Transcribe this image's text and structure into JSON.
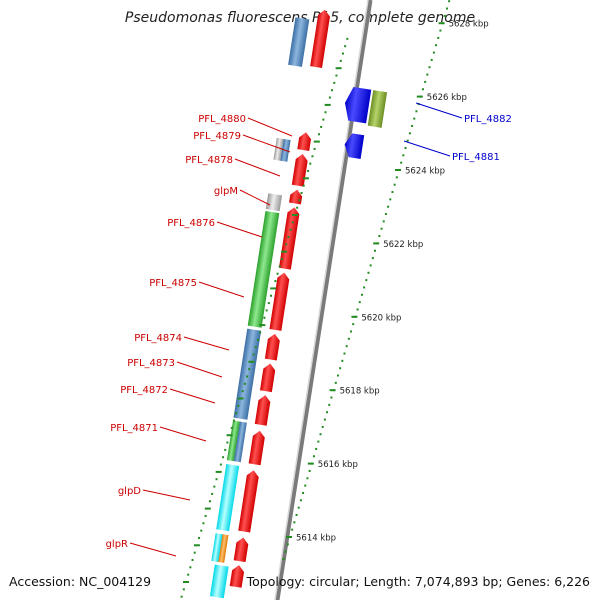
{
  "title": "Pseudomonas fluorescens Pf-5, complete genome",
  "footer": {
    "accession": "Accession: NC_004129",
    "summary": "Topology: circular; Length: 7,074,893 bp; Genes: 6,226"
  },
  "colors": {
    "forward_cds": "#ff0000",
    "reverse_strand_cds": "#0000ff",
    "left_label": "#cc0000",
    "right_label": "#0000cc",
    "ruler_tick": "#228b22",
    "backbone": "#888888"
  },
  "ruler_labels": [
    {
      "pos": 5614,
      "label": "5614 kbp"
    },
    {
      "pos": 5616,
      "label": "5616 kbp"
    },
    {
      "pos": 5618,
      "label": "5618 kbp"
    },
    {
      "pos": 5620,
      "label": "5620 kbp"
    },
    {
      "pos": 5622,
      "label": "5622 kbp"
    },
    {
      "pos": 5624,
      "label": "5624 kbp"
    },
    {
      "pos": 5626,
      "label": "5626 kbp"
    },
    {
      "pos": 5628,
      "label": "5628 kbp"
    }
  ],
  "left_gene_labels": [
    {
      "name": "PFL_4880",
      "pos": 5624.9
    },
    {
      "name": "PFL_4879",
      "pos": 5624.5
    },
    {
      "name": "PFL_4878",
      "pos": 5624.0
    },
    {
      "name": "glpM",
      "pos": 5623.2
    },
    {
      "name": "PFL_4876",
      "pos": 5622.0
    },
    {
      "name": "PFL_4875",
      "pos": 5620.3
    },
    {
      "name": "PFL_4874",
      "pos": 5618.9
    },
    {
      "name": "PFL_4873",
      "pos": 5618.2
    },
    {
      "name": "PFL_4872",
      "pos": 5617.5
    },
    {
      "name": "PFL_4871",
      "pos": 5616.6
    },
    {
      "name": "glpD",
      "pos": 5615.2
    },
    {
      "name": "glpR",
      "pos": 5613.6
    }
  ],
  "right_gene_labels": [
    {
      "name": "PFL_4882",
      "pos": 5625.8
    },
    {
      "name": "PFL_4881",
      "pos": 5625.0
    }
  ]
}
